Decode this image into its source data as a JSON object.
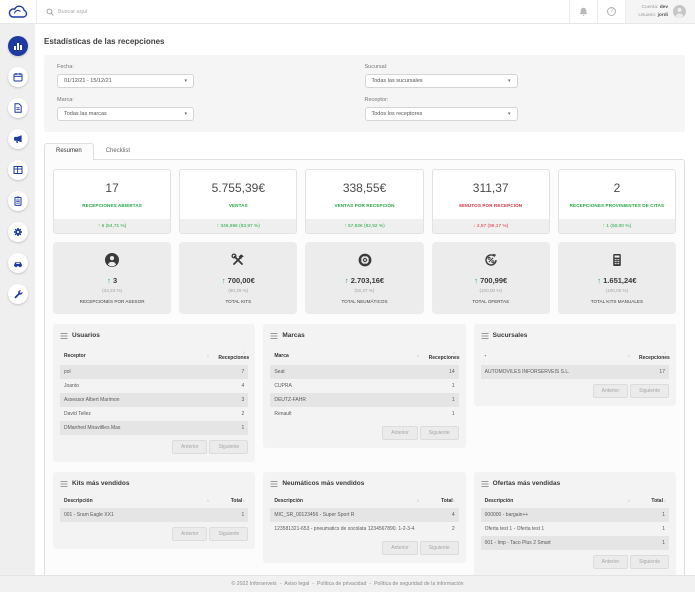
{
  "colors": {
    "accent": "#1e3aa0",
    "green": "#28a745",
    "red": "#dc3545"
  },
  "ui": {
    "caret": "▾",
    "sort": "↑↓"
  },
  "topbar": {
    "search_placeholder": "Buscar aquí",
    "help_glyph": "?",
    "account_label": "Cuenta:",
    "account_value": "dev",
    "user_label": "Usuario:",
    "user_value": "jordi"
  },
  "sidebar": {
    "items": [
      {
        "icon": "bar-chart-icon",
        "active": true
      },
      {
        "icon": "calendar-icon"
      },
      {
        "icon": "document-icon"
      },
      {
        "icon": "megaphone-icon"
      },
      {
        "icon": "table-icon"
      },
      {
        "icon": "clipboard-icon"
      },
      {
        "icon": "gear-icon"
      },
      {
        "icon": "car-icon"
      },
      {
        "icon": "wrench-icon"
      }
    ]
  },
  "page_title": "Estadísticas de las recepciones",
  "filters": {
    "fecha_label": "Fecha:",
    "fecha_value": "01/12/21 - 15/12/21",
    "sucursal_label": "Sucursal:",
    "sucursal_value": "Todas las sucursales",
    "marca_label": "Marca:",
    "marca_value": "Todas las marcas",
    "receptor_label": "Receptor:",
    "receptor_value": "Todos los receptores"
  },
  "tabs": {
    "resumen": "Resumen",
    "checklist": "Checklist"
  },
  "kpis": [
    {
      "value": "17",
      "label": "RECEPCIONES ABIERTAS",
      "arrow": "↑",
      "delta": "6 (54,71 %)",
      "trend": "up"
    },
    {
      "value": "5.755,39€",
      "label": "VENTAS",
      "arrow": "↑",
      "delta": "346,98€ (93,97 %)",
      "trend": "up"
    },
    {
      "value": "338,55€",
      "label": "VENTAS POR RECEPCIÓN",
      "arrow": "↑",
      "delta": "57,83€ (82,92 %)",
      "trend": "up"
    },
    {
      "value": "311,37",
      "label": "MINUTOS POR RECEPCIÓN",
      "arrow": "↓",
      "delta": "2,57 (99,17 %)",
      "trend": "down"
    },
    {
      "value": "2",
      "label": "RECEPCIONES PROVINIENTES DE CITAS",
      "arrow": "↑",
      "delta": "1 (50,00 %)",
      "trend": "up"
    }
  ],
  "totals": [
    {
      "icon": "user-icon",
      "arrow": "↑",
      "value": "3",
      "percent": "(33,33 %)",
      "label": "RECEPCIONES POR ASESOR"
    },
    {
      "icon": "tools-icon",
      "arrow": "↑",
      "value": "700,00€",
      "percent": "(80,29 %)",
      "label": "TOTAL KITS"
    },
    {
      "icon": "tire-icon",
      "arrow": "↑",
      "value": "2.703,16€",
      "percent": "(92,27 %)",
      "label": "TOTAL NEUMÁTICOS"
    },
    {
      "icon": "percent-icon",
      "arrow": "↑",
      "value": "700,99€",
      "percent": "(100,00 %)",
      "label": "TOTAL OFERTAS"
    },
    {
      "icon": "calculator-icon",
      "arrow": "↑",
      "value": "1.651,24€",
      "percent": "(100,00 %)",
      "label": "TOTAL KITS MANUALES"
    }
  ],
  "tables": {
    "usuarios": {
      "title": "Usuarios",
      "columns": [
        "Receptor",
        "Recepciones"
      ],
      "rows": [
        [
          "pol",
          "7"
        ],
        [
          "Joanto",
          "4"
        ],
        [
          "Assessor Albert Marimon",
          "3"
        ],
        [
          "David Tellez",
          "2"
        ],
        [
          "DManfred Miravitlles Mas",
          "1"
        ]
      ]
    },
    "marcas": {
      "title": "Marcas",
      "columns": [
        "Marca",
        "Recepciones"
      ],
      "rows": [
        [
          "Seat",
          "14"
        ],
        [
          "CUPRA",
          "1"
        ],
        [
          "DEUTZ-FAHR",
          "1"
        ],
        [
          "Renault",
          "1"
        ]
      ]
    },
    "sucursales": {
      "title": "Sucursales",
      "columns": [
        "-",
        "Recepciones"
      ],
      "rows": [
        [
          "AUTOMOVILES INFORSERVEIS S.L.",
          "17"
        ]
      ]
    },
    "kits": {
      "title": "Kits más vendidos",
      "columns": [
        "Descripción",
        "Total"
      ],
      "rows": [
        [
          "001 - Sram Eagle XX1",
          "1"
        ]
      ]
    },
    "neumaticos": {
      "title": "Neumáticos más vendidos",
      "columns": [
        "Descripción",
        "Total"
      ],
      "rows": [
        [
          "MIC_SR_00123456 - Super Sport R",
          "4"
        ],
        [
          "123581321-653 - pneumatics de xocolata 1234567890. 1-2-3-4",
          "2"
        ]
      ]
    },
    "ofertas": {
      "title": "Ofertas más vendidas",
      "columns": [
        "Descripción",
        "Total"
      ],
      "rows": [
        [
          "000000 - bargain++",
          "1"
        ],
        [
          "Oferta test 1 - Oferta test 1",
          "1"
        ],
        [
          "001 - Imp - Taco Plus 2 Smart",
          "1"
        ]
      ]
    }
  },
  "pagination": {
    "prev": "Anterior",
    "next": "Siguiente"
  },
  "footer": {
    "copyright": "© 2022 Inforserveis",
    "separator": "-",
    "links": [
      "Aviso legal",
      "Política de privacidad",
      "Política de seguridad de la información"
    ]
  }
}
